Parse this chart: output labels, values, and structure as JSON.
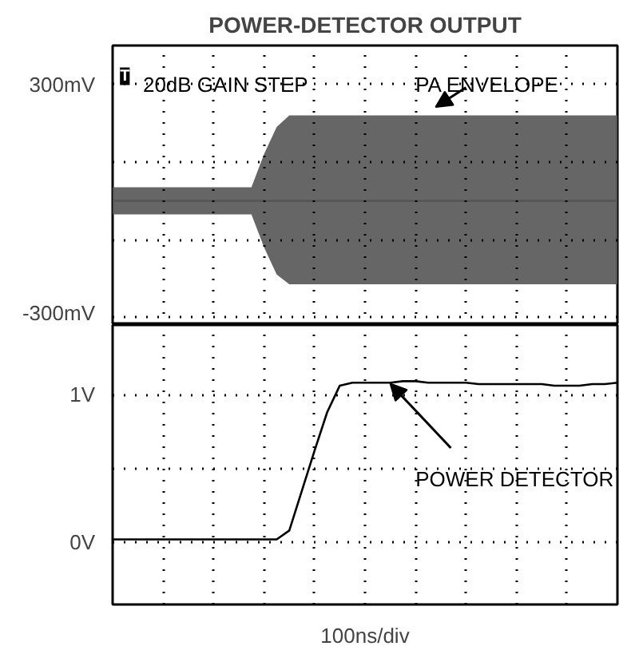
{
  "chart_data": [
    {
      "type": "line",
      "title": "POWER-DETECTOR OUTPUT",
      "categories": [
        null,
        null,
        null,
        null,
        null,
        null,
        null,
        null,
        null,
        null,
        null,
        null,
        null,
        null,
        null,
        null,
        null,
        null,
        null,
        null,
        null,
        null,
        null,
        null,
        null,
        null,
        null,
        null,
        null,
        null,
        null,
        null,
        null,
        null,
        null,
        null,
        null,
        null,
        null,
        null,
        null
      ],
      "series": [
        {
          "color": "#555555",
          "values": [
            0,
            0,
            0,
            0,
            0,
            0,
            0,
            0,
            0,
            0,
            0,
            0,
            0,
            0,
            0,
            0,
            0,
            0,
            0,
            0,
            0,
            0,
            0,
            0,
            0,
            0,
            0,
            0,
            0,
            0,
            0,
            0,
            0,
            0,
            0,
            0,
            0,
            0,
            0,
            0,
            0
          ],
          "upper": [
            35,
            35,
            35,
            35,
            35,
            35,
            35,
            35,
            35,
            35,
            35,
            35,
            120,
            190,
            220,
            220,
            220,
            220,
            220,
            220,
            220,
            220,
            220,
            220,
            220,
            220,
            220,
            220,
            220,
            220,
            220,
            220,
            220,
            220,
            220,
            220,
            220,
            220,
            220,
            220,
            220
          ],
          "lower": [
            -35,
            -35,
            -35,
            -35,
            -35,
            -35,
            -35,
            -35,
            -35,
            -35,
            -35,
            -35,
            -120,
            -190,
            -215,
            -215,
            -215,
            -215,
            -215,
            -215,
            -215,
            -215,
            -215,
            -215,
            -215,
            -215,
            -215,
            -215,
            -215,
            -215,
            -215,
            -215,
            -215,
            -215,
            -215,
            -215,
            -215,
            -215,
            -215,
            -215,
            -215
          ]
        }
      ],
      "ylim": [
        -320,
        400
      ],
      "yticks": [
        {
          "value": 300,
          "label": "300mV"
        },
        {
          "value": 100,
          "label": null
        },
        {
          "value": -100,
          "label": null
        },
        {
          "value": -300,
          "label": "-300mV"
        }
      ],
      "grid": true,
      "tick_labels": "y",
      "annotations": [
        "T",
        "20dB GAIN STEP",
        "PA ENVELOPE"
      ]
    },
    {
      "type": "line",
      "xlabel": "100ns/div",
      "categories": [
        null,
        null,
        null,
        null,
        null,
        null,
        null,
        null,
        null,
        null,
        null,
        null,
        null,
        null,
        null,
        null,
        null,
        null,
        null,
        null,
        null,
        null,
        null,
        null,
        null,
        null,
        null,
        null,
        null,
        null,
        null,
        null,
        null,
        null,
        null,
        null,
        null,
        null,
        null,
        null,
        null
      ],
      "series": [
        {
          "color": "#000000",
          "values": [
            0.02,
            0.02,
            0.02,
            0.02,
            0.02,
            0.02,
            0.02,
            0.02,
            0.02,
            0.02,
            0.02,
            0.02,
            0.02,
            0.02,
            0.08,
            0.35,
            0.62,
            0.88,
            1.06,
            1.08,
            1.08,
            1.08,
            1.08,
            1.09,
            1.09,
            1.08,
            1.08,
            1.08,
            1.08,
            1.07,
            1.07,
            1.07,
            1.07,
            1.07,
            1.07,
            1.06,
            1.06,
            1.06,
            1.07,
            1.07,
            1.08
          ]
        }
      ],
      "ylim": [
        -0.42,
        1.47
      ],
      "yticks": [
        {
          "value": 1,
          "label": "1V"
        },
        {
          "value": 0.5,
          "label": null
        },
        {
          "value": 0,
          "label": "0V"
        }
      ],
      "grid": true,
      "tick_labels": "y",
      "line_style": "solid",
      "annotations": [
        "POWER DETECTOR"
      ]
    }
  ]
}
